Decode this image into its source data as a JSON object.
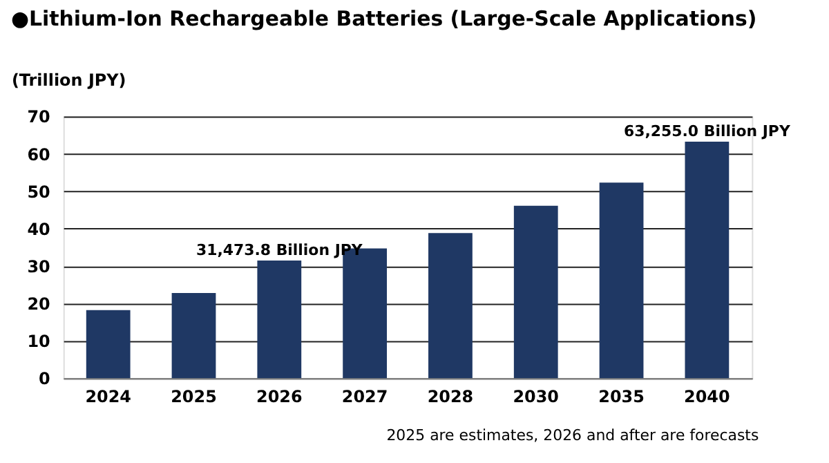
{
  "chart_data": {
    "type": "bar",
    "title": "●Lithium-Ion Rechargeable Batteries (Large-Scale Applications)",
    "ylabel": "(Trillion JPY)",
    "categories": [
      "2024",
      "2025",
      "2026",
      "2027",
      "2028",
      "2030",
      "2035",
      "2040"
    ],
    "values": [
      18.2,
      22.8,
      31.4738,
      34.7,
      38.8,
      46.1,
      52.3,
      63.255
    ],
    "color": "#1f3864",
    "ylim": [
      0,
      70
    ],
    "yticks": [
      0,
      10,
      20,
      30,
      40,
      50,
      60,
      70
    ],
    "grid": "y",
    "annotations": [
      {
        "text": "31,473.8 Billion JPY",
        "x": "2026",
        "y": 31.4738
      },
      {
        "text": "63,255.0 Billion JPY",
        "x": "2040",
        "y": 63.255
      },
      "2025 are estimates, 2026 and after are forecasts"
    ]
  }
}
